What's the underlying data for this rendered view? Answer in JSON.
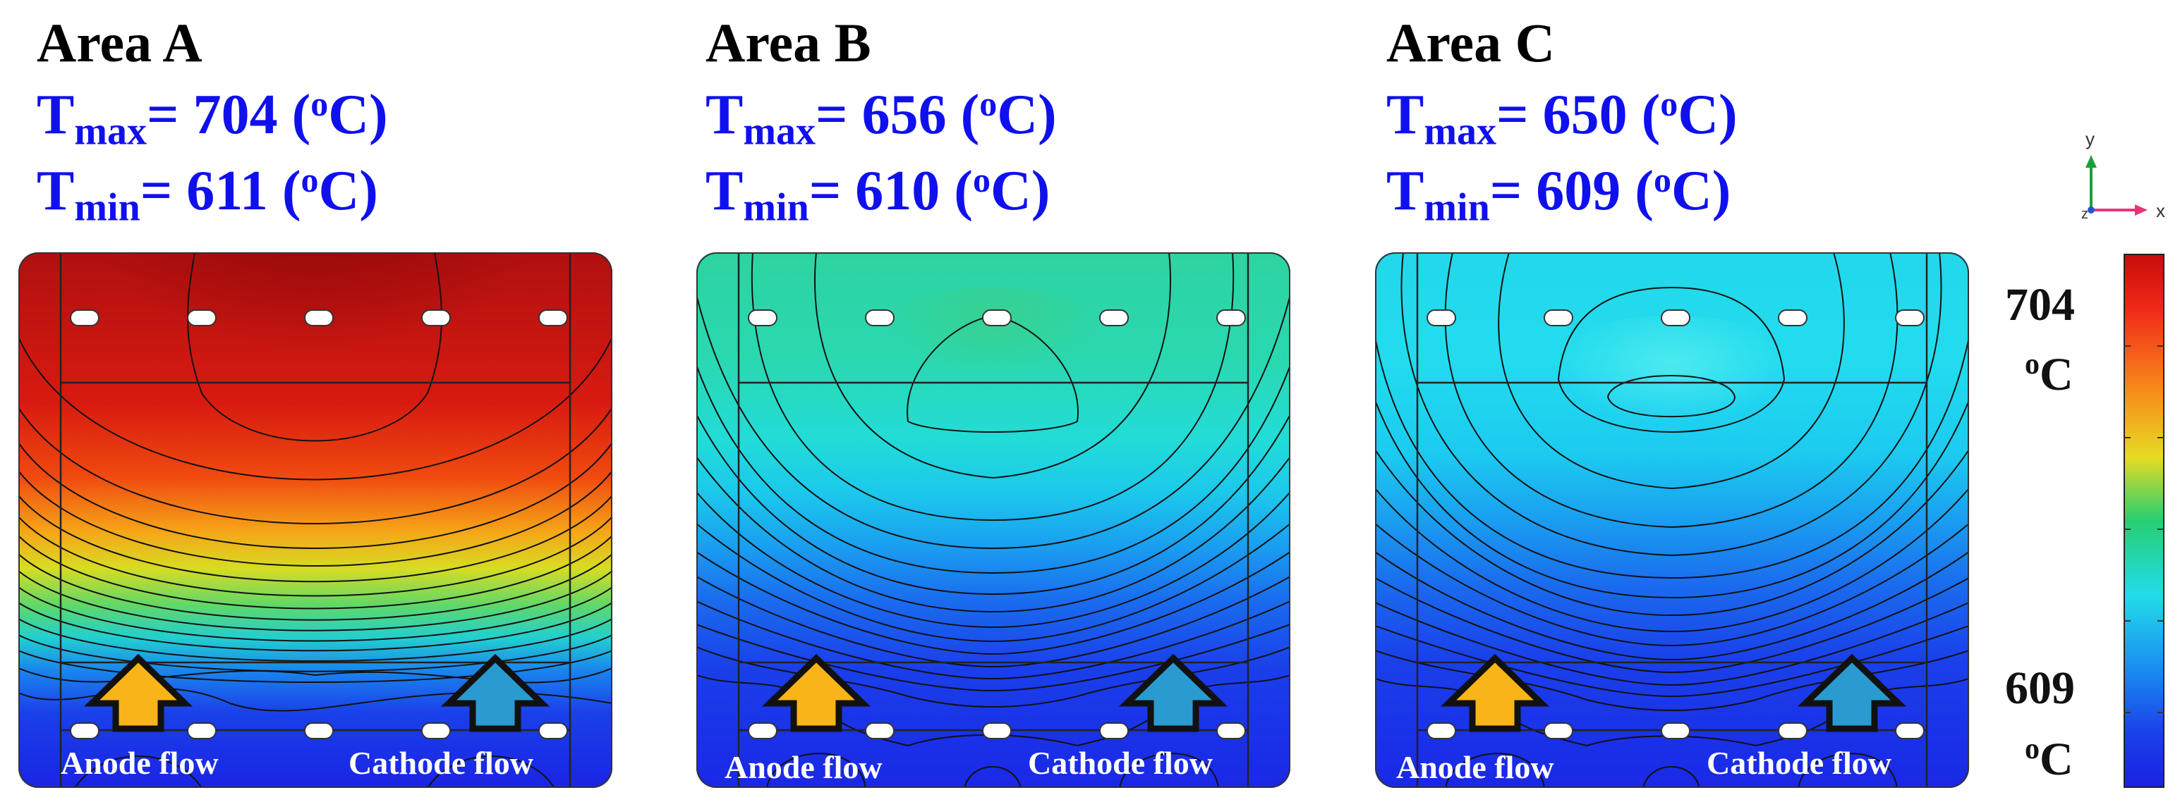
{
  "panels": [
    {
      "title": "Area A",
      "tmax_prefix": "T",
      "tmax_sub": "max",
      "tmax_value": "= 704 (",
      "tmin_prefix": "T",
      "tmin_sub": "min",
      "tmin_value": "= 611 (",
      "deg": "o",
      "unit": "C)"
    },
    {
      "title": "Area B",
      "tmax_prefix": "T",
      "tmax_sub": "max",
      "tmax_value": "= 656 (",
      "tmin_prefix": "T",
      "tmin_sub": "min",
      "tmin_value": "= 610 (",
      "deg": "o",
      "unit": "C)"
    },
    {
      "title": "Area C",
      "tmax_prefix": "T",
      "tmax_sub": "max",
      "tmax_value": "= 650 (",
      "tmin_prefix": "T",
      "tmin_sub": "min",
      "tmin_value": "= 609 (",
      "deg": "o",
      "unit": "C)"
    }
  ],
  "flow_labels": {
    "anode": "Anode flow",
    "cathode": "Cathode flow"
  },
  "colorbar": {
    "max_label": "704",
    "min_label": "609",
    "deg": "o",
    "unit": "C"
  },
  "axes": {
    "x": "x",
    "y": "y",
    "z": "z"
  },
  "colors": {
    "title_blue": "#1010ee",
    "anode_arrow": "#f8b418",
    "cathode_arrow": "#2a9bd0",
    "panel_a_top": "#a80c0c",
    "panel_b_top": "#28d39a",
    "panel_c_top": "#22dcea",
    "bottom": "#1a2ae8"
  }
}
